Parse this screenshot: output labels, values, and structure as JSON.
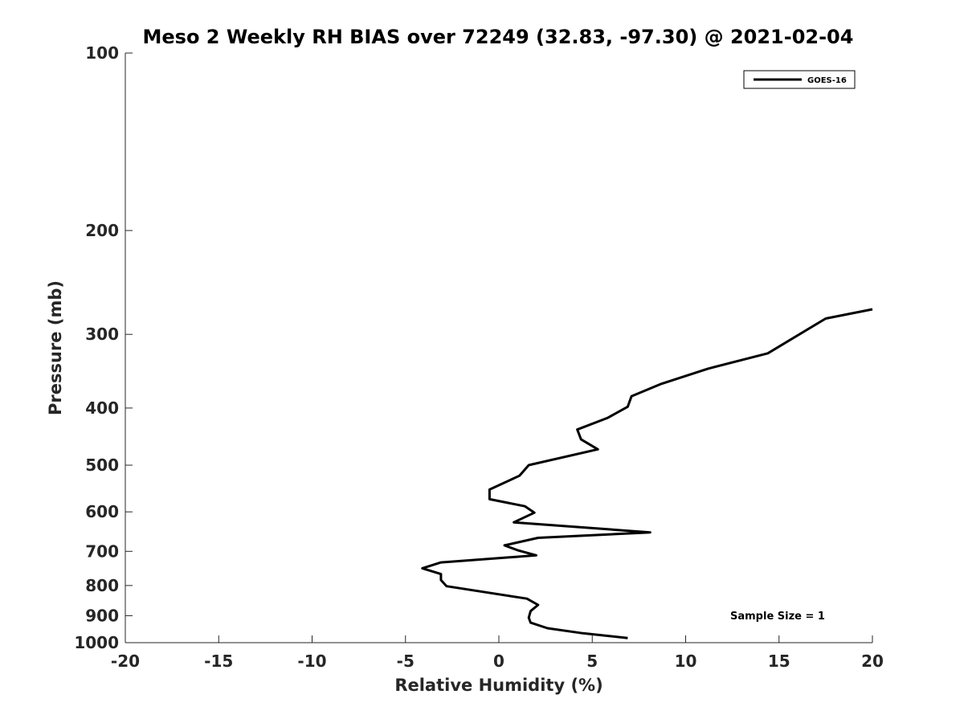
{
  "chart_data": {
    "type": "line",
    "title": "Meso 2 Weekly RH BIAS over 72249 (32.83, -97.30) @ 2021-02-04",
    "xlabel": "Relative Humidity (%)",
    "ylabel": "Pressure (mb)",
    "xlim": [
      -20,
      20
    ],
    "ylim": [
      100,
      1000
    ],
    "y_scale": "log",
    "y_reversed": true,
    "x_ticks": [
      "-20",
      "-15",
      "-10",
      "-5",
      "0",
      "5",
      "10",
      "15",
      "20"
    ],
    "y_ticks": [
      "100",
      "200",
      "300",
      "400",
      "500",
      "600",
      "700",
      "800",
      "900",
      "1000"
    ],
    "grid": false,
    "legend_position": "top-right",
    "series": [
      {
        "name": "GOES-16",
        "color": "#000000",
        "points": [
          [
            20.0,
            272
          ],
          [
            17.5,
            282
          ],
          [
            14.4,
            323
          ],
          [
            11.2,
            343
          ],
          [
            8.7,
            364
          ],
          [
            7.1,
            382
          ],
          [
            6.9,
            398
          ],
          [
            5.8,
            416
          ],
          [
            4.2,
            435
          ],
          [
            4.4,
            452
          ],
          [
            5.3,
            470
          ],
          [
            1.6,
            500
          ],
          [
            1.1,
            521
          ],
          [
            -0.5,
            550
          ],
          [
            -0.5,
            571
          ],
          [
            1.4,
            587
          ],
          [
            1.9,
            602
          ],
          [
            0.8,
            625
          ],
          [
            8.1,
            650
          ],
          [
            2.1,
            664
          ],
          [
            0.3,
            684
          ],
          [
            1.0,
            697
          ],
          [
            2.0,
            711
          ],
          [
            -3.1,
            731
          ],
          [
            -4.1,
            748
          ],
          [
            -3.1,
            765
          ],
          [
            -3.1,
            783
          ],
          [
            -2.8,
            802
          ],
          [
            1.5,
            842
          ],
          [
            2.1,
            863
          ],
          [
            1.7,
            884
          ],
          [
            1.6,
            907
          ],
          [
            1.7,
            925
          ],
          [
            2.6,
            945
          ],
          [
            4.5,
            964
          ],
          [
            6.9,
            982
          ]
        ]
      }
    ],
    "legend": [
      "GOES-16"
    ],
    "annotation": "Sample Size = 1"
  }
}
